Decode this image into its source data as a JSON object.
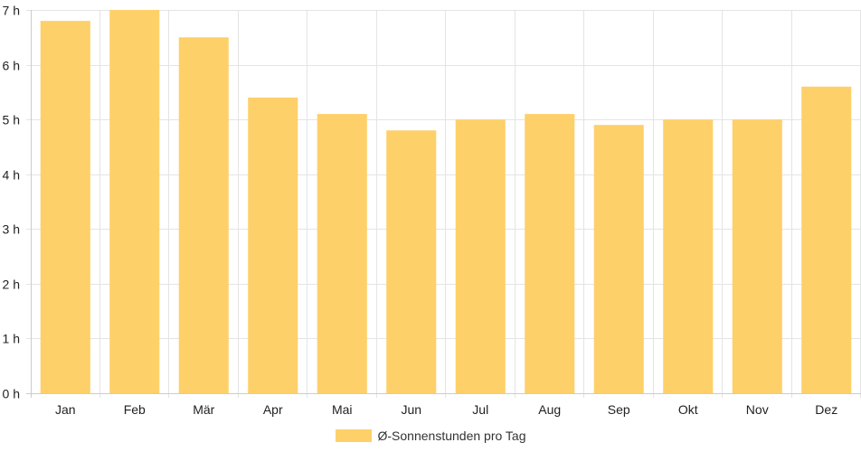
{
  "colors": {
    "bar": "#fed06a",
    "grid": "#e4e4e4",
    "axis": "#cccccc",
    "text": "#222222"
  },
  "chart_data": {
    "type": "bar",
    "categories": [
      "Jan",
      "Feb",
      "Mär",
      "Apr",
      "Mai",
      "Jun",
      "Jul",
      "Aug",
      "Sep",
      "Okt",
      "Nov",
      "Dez"
    ],
    "series": [
      {
        "name": "Ø-Sonnenstunden pro Tag",
        "values": [
          6.8,
          7.0,
          6.5,
          5.4,
          5.1,
          4.8,
          5.0,
          5.1,
          4.9,
          5.0,
          5.0,
          5.6
        ]
      }
    ],
    "y_ticks": [
      "0 h",
      "1 h",
      "2 h",
      "3 h",
      "4 h",
      "5 h",
      "6 h",
      "7 h"
    ],
    "ylim": [
      0,
      7
    ],
    "grid": true,
    "legend_position": "bottom"
  }
}
